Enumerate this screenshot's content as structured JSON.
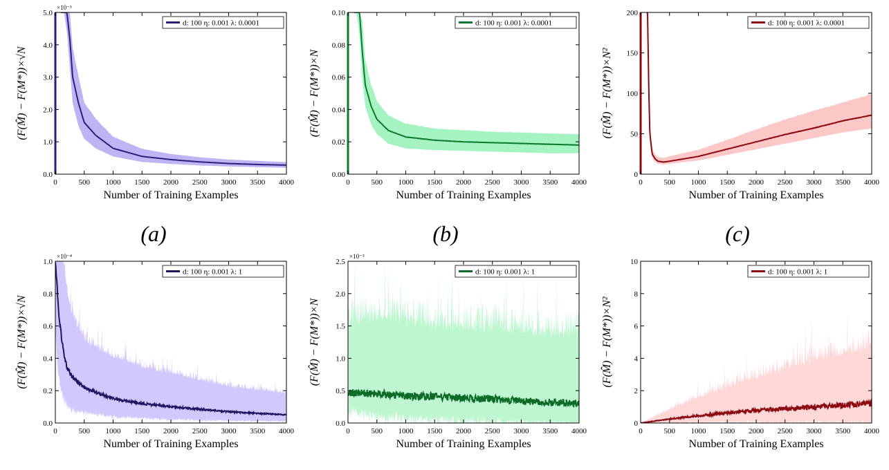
{
  "chart_data": [
    {
      "type": "line",
      "xlabel": "Number of Training Examples",
      "ylabel": "(F(M̂) − F(M*))×√N",
      "y_exponent_label": "×10⁻³",
      "xlim": [
        0,
        4000
      ],
      "ylim": [
        0,
        5.0
      ],
      "x_ticks": [
        0,
        500,
        1000,
        1500,
        2000,
        2500,
        3000,
        3500,
        4000
      ],
      "y_ticks": [
        0,
        1.0,
        2.0,
        3.0,
        4.0,
        5.0
      ],
      "y_tick_labels": [
        "0.0",
        "1.0",
        "2.0",
        "3.0",
        "4.0",
        "5.0"
      ],
      "legend": "d: 100 η: 0.001 λ: 0.0001",
      "legend_position": "top-right",
      "grid": false,
      "color": "#2a1f7a",
      "band_color": "#a99af0",
      "series": [
        {
          "x": [
            100,
            150,
            200,
            250,
            300,
            400,
            500,
            700,
            1000,
            1500,
            2000,
            2500,
            3000,
            3500,
            4000
          ],
          "values": [
            5.0,
            5.0,
            5.0,
            4.2,
            3.0,
            2.2,
            1.6,
            1.2,
            0.8,
            0.55,
            0.45,
            0.38,
            0.33,
            0.3,
            0.28
          ],
          "band_low": [
            5.0,
            5.0,
            4.4,
            3.3,
            2.2,
            1.5,
            1.1,
            0.8,
            0.55,
            0.38,
            0.32,
            0.27,
            0.24,
            0.22,
            0.2
          ],
          "band_high": [
            5.0,
            5.0,
            5.0,
            5.0,
            3.9,
            3.0,
            2.2,
            1.7,
            1.15,
            0.78,
            0.62,
            0.52,
            0.45,
            0.41,
            0.37
          ]
        }
      ],
      "noise": 0.03
    },
    {
      "type": "line",
      "xlabel": "Number of Training Examples",
      "ylabel": "(F(M̂) − F(M*))×N",
      "y_exponent_label": "",
      "xlim": [
        0,
        4000
      ],
      "ylim": [
        0,
        0.1
      ],
      "x_ticks": [
        0,
        500,
        1000,
        1500,
        2000,
        2500,
        3000,
        3500,
        4000
      ],
      "y_ticks": [
        0,
        0.02,
        0.04,
        0.06,
        0.08,
        0.1
      ],
      "y_tick_labels": [
        "0.00",
        "0.02",
        "0.04",
        "0.06",
        "0.08",
        "0.10"
      ],
      "legend": "d: 100 η: 0.001 λ: 0.0001",
      "legend_position": "top-right",
      "grid": false,
      "color": "#0e7a2e",
      "band_color": "#86efac",
      "series": [
        {
          "x": [
            100,
            150,
            200,
            250,
            300,
            400,
            500,
            700,
            1000,
            1500,
            2000,
            2500,
            3000,
            3500,
            4000
          ],
          "values": [
            0.1,
            0.1,
            0.1,
            0.075,
            0.055,
            0.042,
            0.034,
            0.027,
            0.023,
            0.021,
            0.02,
            0.0195,
            0.019,
            0.0185,
            0.018
          ],
          "band_low": [
            0.1,
            0.1,
            0.085,
            0.058,
            0.042,
            0.031,
            0.025,
            0.019,
            0.016,
            0.015,
            0.0145,
            0.014,
            0.0135,
            0.013,
            0.013
          ],
          "band_high": [
            0.1,
            0.1,
            0.1,
            0.094,
            0.07,
            0.055,
            0.045,
            0.036,
            0.031,
            0.028,
            0.027,
            0.026,
            0.0255,
            0.025,
            0.0245
          ]
        }
      ],
      "noise": 0.04
    },
    {
      "type": "line",
      "xlabel": "Number of Training Examples",
      "ylabel": "(F(M̂) − F(M*))×N²",
      "y_exponent_label": "",
      "xlim": [
        0,
        4000
      ],
      "ylim": [
        0,
        200
      ],
      "x_ticks": [
        0,
        500,
        1000,
        1500,
        2000,
        2500,
        3000,
        3500,
        4000
      ],
      "y_ticks": [
        0,
        50,
        100,
        150,
        200
      ],
      "y_tick_labels": [
        "0",
        "50",
        "100",
        "150",
        "200"
      ],
      "legend": "d: 100 η: 0.001 λ: 0.0001",
      "legend_position": "top-right",
      "grid": false,
      "color": "#8b0a12",
      "band_color": "#fbb4b4",
      "series": [
        {
          "x": [
            100,
            120,
            140,
            160,
            200,
            250,
            300,
            400,
            500,
            1000,
            1500,
            2000,
            2500,
            3000,
            3500,
            4000
          ],
          "values": [
            200,
            200,
            110,
            50,
            25,
            19,
            16,
            15,
            16,
            22,
            31,
            40,
            49,
            57,
            66,
            73
          ],
          "band_low": [
            200,
            180,
            90,
            40,
            20,
            15,
            13,
            12,
            13,
            17,
            24,
            31,
            38,
            45,
            52,
            57
          ],
          "band_high": [
            200,
            200,
            130,
            62,
            31,
            24,
            21,
            20,
            22,
            30,
            42,
            55,
            67,
            78,
            88,
            98
          ]
        }
      ],
      "noise": 0.05
    },
    {
      "type": "line",
      "xlabel": "Number of Training Examples",
      "ylabel": "(F(M̂) − F(M*))×√N",
      "y_exponent_label": "×10⁻⁴",
      "xlim": [
        0,
        4000
      ],
      "ylim": [
        0,
        1.0
      ],
      "x_ticks": [
        0,
        500,
        1000,
        1500,
        2000,
        2500,
        3000,
        3500,
        4000
      ],
      "y_ticks": [
        0,
        0.2,
        0.4,
        0.6,
        0.8,
        1.0
      ],
      "y_tick_labels": [
        "0.0",
        "0.2",
        "0.4",
        "0.6",
        "0.8",
        "1.0"
      ],
      "legend": "d: 100 η: 0.001 λ: 1",
      "legend_position": "top-right",
      "grid": false,
      "color": "#22145e",
      "band_color": "#c4b5fd",
      "series": [
        {
          "x": [
            0,
            30,
            60,
            100,
            150,
            200,
            300,
            500,
            1000,
            1500,
            2000,
            2500,
            3000,
            3500,
            4000
          ],
          "values": [
            1.0,
            0.85,
            0.67,
            0.55,
            0.42,
            0.35,
            0.28,
            0.22,
            0.15,
            0.12,
            0.1,
            0.085,
            0.07,
            0.06,
            0.05
          ],
          "band_low": [
            0.6,
            0.4,
            0.3,
            0.22,
            0.16,
            0.13,
            0.1,
            0.08,
            0.05,
            0.04,
            0.03,
            0.025,
            0.02,
            0.018,
            0.015
          ],
          "band_high": [
            1.0,
            1.0,
            1.0,
            1.0,
            0.95,
            0.8,
            0.65,
            0.5,
            0.4,
            0.34,
            0.3,
            0.26,
            0.22,
            0.2,
            0.18
          ]
        }
      ],
      "noise": 0.18
    },
    {
      "type": "line",
      "xlabel": "Number of Training Examples",
      "ylabel": "(F(M̂) − F(M*))×N",
      "y_exponent_label": "×10⁻³",
      "xlim": [
        0,
        4000
      ],
      "ylim": [
        0,
        2.5
      ],
      "x_ticks": [
        0,
        500,
        1000,
        1500,
        2000,
        2500,
        3000,
        3500,
        4000
      ],
      "y_ticks": [
        0,
        0.5,
        1.0,
        1.5,
        2.0,
        2.5
      ],
      "y_tick_labels": [
        "0.0",
        "0.5",
        "1.0",
        "1.5",
        "2.0",
        "2.5"
      ],
      "legend": "d: 100 η: 0.001 λ: 1",
      "legend_position": "top-right",
      "grid": false,
      "color": "#0b6b27",
      "band_color": "#a7f3c0",
      "series": [
        {
          "x": [
            0,
            500,
            1000,
            1500,
            2000,
            2500,
            3000,
            3500,
            4000
          ],
          "values": [
            0.47,
            0.45,
            0.42,
            0.41,
            0.39,
            0.37,
            0.34,
            0.32,
            0.3
          ],
          "band_low": [
            0.25,
            0.2,
            0.15,
            0.12,
            0.1,
            0.08,
            0.07,
            0.06,
            0.05
          ],
          "band_high": [
            1.5,
            1.55,
            1.5,
            1.45,
            1.4,
            1.4,
            1.35,
            1.3,
            1.3
          ]
        }
      ],
      "noise": 0.35
    },
    {
      "type": "line",
      "xlabel": "Number of Training Examples",
      "ylabel": "(F(M̂) − F(M*))×N²",
      "y_exponent_label": "",
      "xlim": [
        0,
        4000
      ],
      "ylim": [
        0,
        10
      ],
      "x_ticks": [
        0,
        500,
        1000,
        1500,
        2000,
        2500,
        3000,
        3500,
        4000
      ],
      "y_ticks": [
        0,
        2,
        4,
        6,
        8,
        10
      ],
      "y_tick_labels": [
        "0",
        "2",
        "4",
        "6",
        "8",
        "10"
      ],
      "legend": "d: 100 η: 0.001 λ: 1",
      "legend_position": "top-right",
      "grid": false,
      "color": "#8b0a12",
      "band_color": "#fecaca",
      "series": [
        {
          "x": [
            0,
            500,
            1000,
            1500,
            2000,
            2500,
            3000,
            3500,
            4000
          ],
          "values": [
            0.0,
            0.25,
            0.45,
            0.62,
            0.78,
            0.9,
            1.0,
            1.1,
            1.2
          ],
          "band_low": [
            0.0,
            0.08,
            0.12,
            0.15,
            0.18,
            0.2,
            0.22,
            0.24,
            0.25
          ],
          "band_high": [
            0.0,
            0.8,
            1.5,
            2.1,
            2.7,
            3.2,
            3.7,
            4.1,
            4.5
          ]
        }
      ],
      "noise": 0.35
    }
  ],
  "captions": [
    "(a)",
    "(b)",
    "(c)"
  ]
}
